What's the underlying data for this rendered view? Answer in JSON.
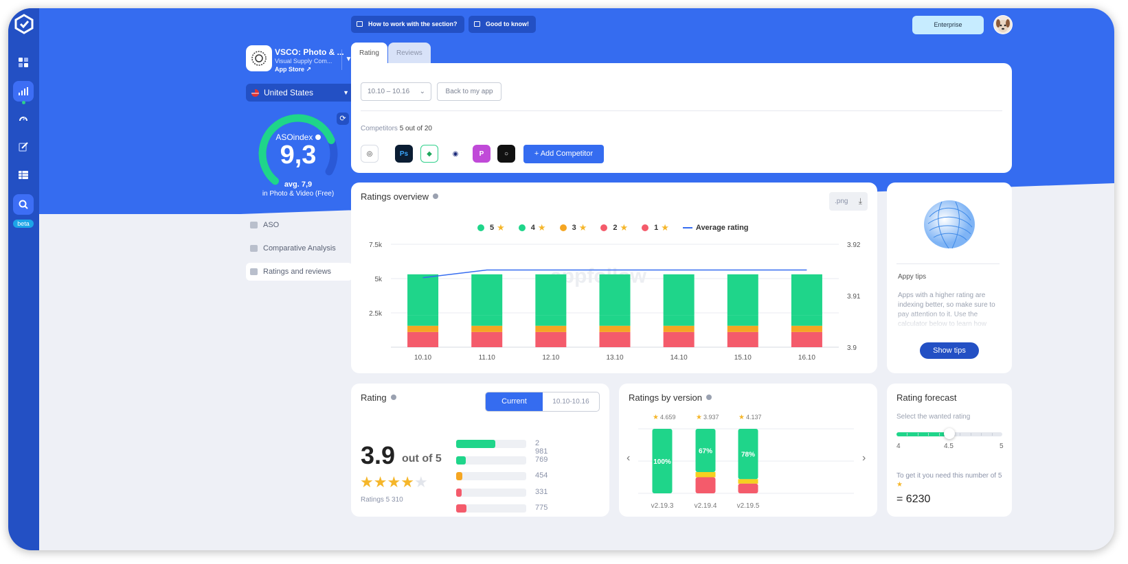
{
  "header": {
    "help_button": "How to work with the section?",
    "good_to_know_button": "Good to know!",
    "plan_badge": "Enterprise"
  },
  "app": {
    "name": "VSCO: Photo & ...",
    "developer": "Visual Supply Com...",
    "store": "App Store"
  },
  "country": "United States",
  "aso_index": {
    "label": "ASOindex",
    "value": "9,3",
    "avg": "avg. 7,9",
    "category": "in Photo & Video (Free)",
    "fraction": 0.93,
    "avg_fraction": 0.79
  },
  "nav": {
    "items": [
      {
        "label": "ASO",
        "active": false
      },
      {
        "label": "Comparative Analysis",
        "active": false
      },
      {
        "label": "Ratings and reviews",
        "active": true
      }
    ]
  },
  "tabs": {
    "rating": "Rating",
    "reviews": "Reviews"
  },
  "filters": {
    "date_range": "10.10 – 10.16",
    "back_button": "Back to my app"
  },
  "competitors": {
    "label": "Competitors",
    "count": "5 out of 20",
    "add_button": "Add Competitor",
    "icons": [
      {
        "name": "vsco-app-icon",
        "bg": "#ffffff",
        "fg": "#333333",
        "glyph": "◎",
        "border": "#d8dce4"
      },
      {
        "name": "photoshop-app-icon",
        "bg": "#0b1d33",
        "fg": "#3ba7ff",
        "glyph": "Ps",
        "border": "#0b1d33"
      },
      {
        "name": "snapseed-app-icon",
        "bg": "#ffffff",
        "fg": "#1fa65c",
        "glyph": "◆",
        "border": "#2ed08a"
      },
      {
        "name": "camera-app-icon",
        "bg": "#ffffff",
        "fg": "#1b2a7a",
        "glyph": "◉",
        "border": "#ffffff"
      },
      {
        "name": "picsart-app-icon",
        "bg": "#c04ad8",
        "fg": "#ffffff",
        "glyph": "P",
        "border": "#c04ad8"
      },
      {
        "name": "darkroom-app-icon",
        "bg": "#111111",
        "fg": "#ffffff",
        "glyph": "○",
        "border": "#111111"
      }
    ]
  },
  "overview": {
    "title": "Ratings overview",
    "export_label": ".png",
    "watermark": "appfollow",
    "legend": [
      {
        "label": "5",
        "color": "#1fd58a"
      },
      {
        "label": "4",
        "color": "#1fd58a"
      },
      {
        "label": "3",
        "color": "#f5a623"
      },
      {
        "label": "2",
        "color": "#f45b6b"
      },
      {
        "label": "1",
        "color": "#f45b6b"
      }
    ],
    "legend_line": "Average rating"
  },
  "chart_data": {
    "type": "bar",
    "categories": [
      "10.10",
      "11.10",
      "12.10",
      "13.10",
      "14.10",
      "15.10",
      "16.10"
    ],
    "series": [
      {
        "name": "1",
        "color": "#f45b6b",
        "values": [
          775,
          775,
          775,
          775,
          775,
          775,
          775
        ]
      },
      {
        "name": "2",
        "color": "#f45b6b",
        "values": [
          331,
          331,
          331,
          331,
          331,
          331,
          331
        ]
      },
      {
        "name": "3",
        "color": "#f5a623",
        "values": [
          454,
          454,
          454,
          454,
          454,
          454,
          454
        ]
      },
      {
        "name": "4",
        "color": "#1fd58a",
        "values": [
          769,
          769,
          769,
          769,
          769,
          769,
          769
        ]
      },
      {
        "name": "5",
        "color": "#1fd58a",
        "values": [
          2981,
          2981,
          2981,
          2981,
          2981,
          2981,
          2981
        ]
      }
    ],
    "line": {
      "name": "Average rating",
      "color": "#356cf0",
      "values": [
        3.9135,
        3.915,
        3.915,
        3.915,
        3.915,
        3.915,
        3.915
      ]
    },
    "y_ticks": [
      "7.5k",
      "5k",
      "2.5k"
    ],
    "y_right_ticks": [
      "3.92",
      "3.91",
      "3.9"
    ],
    "ylim": [
      0,
      7500
    ],
    "ylim_right": [
      3.9,
      3.92
    ],
    "legend_position": "top-center",
    "grid": true
  },
  "tips": {
    "title": "Appy tips",
    "text": "Apps with a higher rating are indexing better, so make sure to pay attention to it. Use the calculator below to learn how",
    "button": "Show tips"
  },
  "rating_card": {
    "title": "Rating",
    "seg_current": "Current",
    "seg_range": "10.10-10.16",
    "value": "3.9",
    "out_of": "out of 5",
    "stars": 3.9,
    "count": "Ratings 5 310",
    "bars": [
      {
        "value": "2 981",
        "fraction": 0.56,
        "color": "#1fd58a"
      },
      {
        "value": "769",
        "fraction": 0.14,
        "color": "#1fd58a"
      },
      {
        "value": "454",
        "fraction": 0.085,
        "color": "#f5a623"
      },
      {
        "value": "331",
        "fraction": 0.06,
        "color": "#f45b6b"
      },
      {
        "value": "775",
        "fraction": 0.145,
        "color": "#f45b6b"
      }
    ]
  },
  "versions_card": {
    "title": "Ratings by version",
    "versions": [
      {
        "label": "v2.19.3",
        "rating": "4.659",
        "pct": "100%",
        "green": 1.0,
        "yellow": 0.0,
        "red": 0.0
      },
      {
        "label": "v2.19.4",
        "rating": "3.937",
        "pct": "67%",
        "green": 0.67,
        "yellow": 0.08,
        "red": 0.25
      },
      {
        "label": "v2.19.5",
        "rating": "4.137",
        "pct": "78%",
        "green": 0.78,
        "yellow": 0.07,
        "red": 0.15
      }
    ]
  },
  "forecast": {
    "title": "Rating forecast",
    "subtitle": "Select the wanted rating",
    "min": "4",
    "selected": "4.5",
    "max": "5",
    "fraction": 0.5,
    "need_text": "To get it you need this number of 5",
    "result": "= 6230"
  }
}
